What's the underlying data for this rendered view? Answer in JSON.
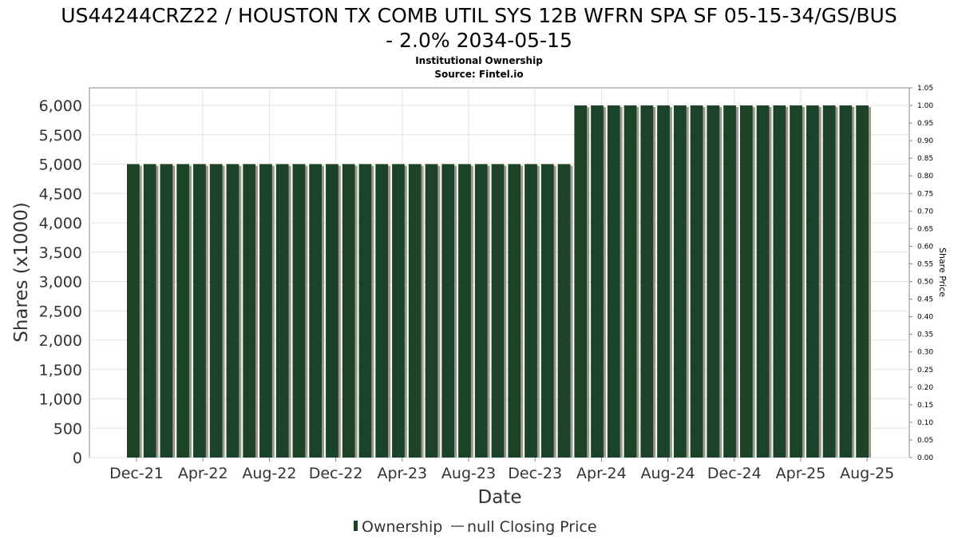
{
  "chart_data": {
    "type": "bar",
    "title_line1": "US44244CRZ22 / HOUSTON TX COMB UTIL SYS 12B WFRN SPA SF 05-15-34/GS/BUS",
    "title_line2": "- 2.0% 2034-05-15",
    "subtitle1": "Institutional Ownership",
    "subtitle2": "Source: Fintel.io",
    "xlabel": "Date",
    "ylabel": "Shares (x1000)",
    "ylabel_right": "Share Price",
    "ylim": [
      0,
      6300
    ],
    "ylim_right": [
      0,
      1.05
    ],
    "yticks": [
      "0",
      "500",
      "1,000",
      "1,500",
      "2,000",
      "2,500",
      "3,000",
      "3,500",
      "4,000",
      "4,500",
      "5,000",
      "5,500",
      "6,000"
    ],
    "yticks_right": [
      "0.00",
      "0.05",
      "0.10",
      "0.15",
      "0.20",
      "0.25",
      "0.30",
      "0.35",
      "0.40",
      "0.45",
      "0.50",
      "0.55",
      "0.60",
      "0.65",
      "0.70",
      "0.75",
      "0.80",
      "0.85",
      "0.90",
      "0.95",
      "1.00",
      "1.05"
    ],
    "xticks": [
      "Dec-21",
      "Apr-22",
      "Aug-22",
      "Dec-22",
      "Apr-23",
      "Aug-23",
      "Dec-23",
      "Apr-24",
      "Aug-24",
      "Dec-24",
      "Apr-25",
      "Aug-25"
    ],
    "grid": true,
    "legend_placement": "bottom",
    "bar_color": "#1c4228",
    "series": [
      {
        "name": "Ownership",
        "values": [
          5000,
          5000,
          5000,
          5000,
          5000,
          5000,
          5000,
          5000,
          5000,
          5000,
          5000,
          5000,
          5000,
          5000,
          5000,
          5000,
          5000,
          5000,
          5000,
          5000,
          5000,
          5000,
          5000,
          5000,
          5000,
          5000,
          5000,
          6000,
          6000,
          6000,
          6000,
          6000,
          6000,
          6000,
          6000,
          6000,
          6000,
          6000,
          6000,
          6000,
          6000,
          6000,
          6000,
          6000,
          6000
        ]
      },
      {
        "name": "null Closing Price",
        "values": []
      }
    ]
  }
}
